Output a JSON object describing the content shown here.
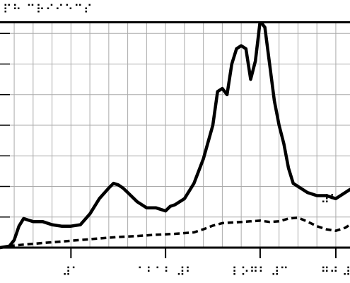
{
  "chart_data": {
    "type": "line",
    "title": "⠏⠓ ⠉⠗⠊⠊⠑⠉⠎",
    "x_tick_labels": [
      "⠼⠁",
      "⠁⠃⠁⠃ ⠼⠃",
      "⠇⠕⠛⠃ ⠼⠉",
      "⠛⠚ ⠼"
    ],
    "x_ticks": [
      1,
      6,
      11,
      15
    ],
    "xlim": [
      -2.75,
      15.75
    ],
    "ylim": [
      0,
      8
    ],
    "y_ticks": [
      0,
      1,
      2,
      3,
      4,
      5,
      6,
      7,
      8
    ],
    "grid": true,
    "series": [
      {
        "name": "⠁⠂⠁⠾",
        "style": "solid",
        "label_at": [
          14.2,
          7.4
        ],
        "x": [
          -2.75,
          -2.25,
          -2.0,
          -1.75,
          -1.5,
          -1.25,
          -1.0,
          -0.5,
          0.0,
          0.5,
          1.0,
          1.5,
          2.0,
          2.5,
          3.0,
          3.25,
          3.5,
          3.75,
          4.0,
          4.5,
          5.0,
          5.5,
          6.0,
          6.25,
          6.5,
          7.0,
          7.5,
          8.0,
          8.5,
          8.75,
          9.0,
          9.25,
          9.5,
          9.75,
          10.0,
          10.25,
          10.5,
          10.75,
          11.0,
          11.25,
          11.5,
          11.75,
          12.0,
          12.25,
          12.5,
          12.75,
          13.0,
          13.5,
          14.0,
          14.5,
          15.0,
          15.5,
          15.75
        ],
        "values": [
          0.0,
          0.05,
          0.25,
          0.7,
          0.95,
          0.9,
          0.85,
          0.85,
          0.75,
          0.7,
          0.7,
          0.75,
          1.1,
          1.6,
          1.95,
          2.1,
          2.05,
          1.95,
          1.8,
          1.5,
          1.3,
          1.3,
          1.2,
          1.35,
          1.4,
          1.6,
          2.1,
          2.9,
          4.0,
          5.1,
          5.2,
          5.0,
          6.0,
          6.5,
          6.6,
          6.5,
          5.5,
          6.1,
          7.4,
          7.2,
          6.0,
          4.8,
          4.0,
          3.4,
          2.6,
          2.1,
          2.0,
          1.8,
          1.7,
          1.7,
          1.6,
          1.8,
          1.9
        ]
      },
      {
        "name": "⠼⠓",
        "style": "dashed",
        "label_at": [
          14.2,
          1.45
        ],
        "x": [
          -2.75,
          -2.25,
          -1.5,
          -0.5,
          0.5,
          1.5,
          2.5,
          3.5,
          4.5,
          5.5,
          6.5,
          7.5,
          8.0,
          8.5,
          9.0,
          9.5,
          10.0,
          10.5,
          11.0,
          11.5,
          12.0,
          12.5,
          13.0,
          13.5,
          14.0,
          14.5,
          15.0,
          15.5,
          15.75
        ],
        "values": [
          0.0,
          0.05,
          0.1,
          0.15,
          0.2,
          0.25,
          0.3,
          0.35,
          0.38,
          0.42,
          0.45,
          0.5,
          0.6,
          0.72,
          0.8,
          0.82,
          0.84,
          0.86,
          0.88,
          0.84,
          0.86,
          0.95,
          0.98,
          0.85,
          0.7,
          0.6,
          0.55,
          0.65,
          0.75
        ]
      }
    ]
  }
}
